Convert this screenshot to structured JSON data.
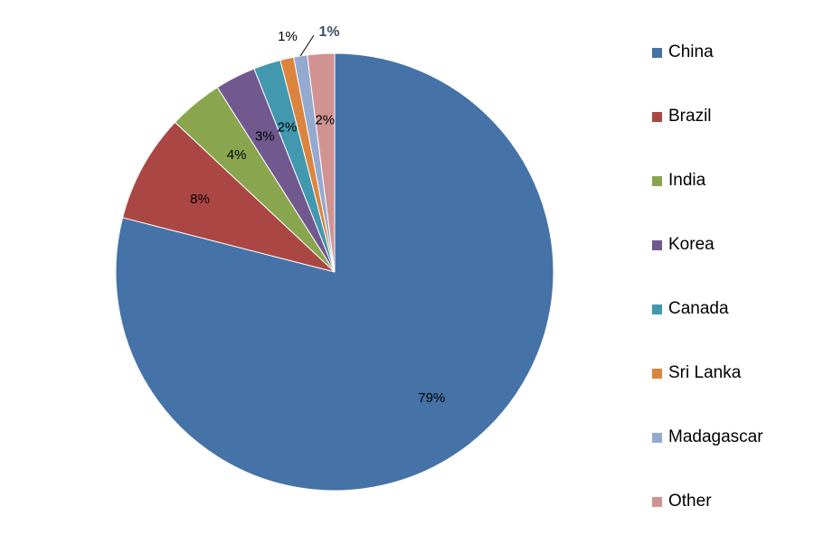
{
  "chart_data": {
    "type": "pie",
    "categories": [
      "China",
      "Brazil",
      "India",
      "Korea",
      "Canada",
      "Sri Lanka",
      "Madagascar",
      "Other"
    ],
    "values": [
      79,
      8,
      4,
      3,
      2,
      1,
      1,
      2
    ],
    "labels": [
      "79%",
      "8%",
      "4%",
      "3%",
      "2%",
      "1%",
      "1%",
      "2%"
    ],
    "colors": [
      "#4572A7",
      "#AA4643",
      "#89A54E",
      "#71588F",
      "#4198AF",
      "#DB843D",
      "#93A9CF",
      "#D19392"
    ],
    "legend_position": "right",
    "title": "",
    "start": "12 o'clock, clockwise"
  }
}
